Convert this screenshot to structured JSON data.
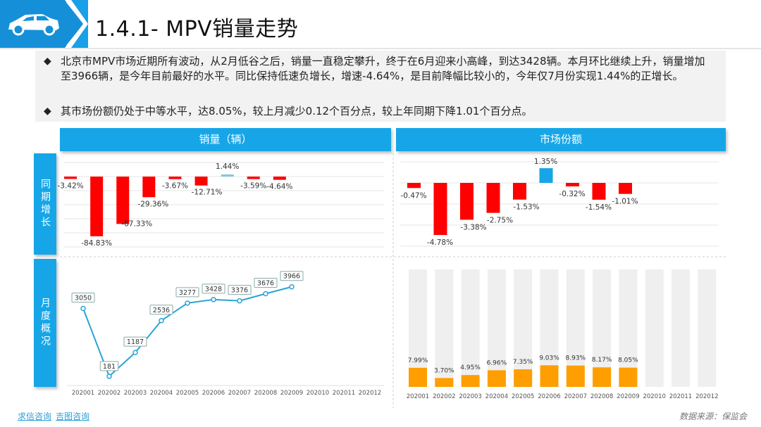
{
  "header": {
    "title": "1.4.1- MPV销量走势",
    "logo_icon": "car-icon"
  },
  "summary": {
    "bullets": [
      "北京市MPV市场近期所有波动，从2月低谷之后，销量一直稳定攀升，终于在6月迎来小高峰，到达3428辆。本月环比继续上升，销量增加至3966辆，是今年目前最好的水平。同比保持低速负增长，增速-4.64%，是目前降幅比较小的，今年仅7月份实现1.44%的正增长。",
      "其市场份额仍处于中等水平，达8.05%，较上月减少0.12个百分点，较上年同期下降1.01个百分点。"
    ]
  },
  "panels": {
    "sales_title": "销量（辆）",
    "share_title": "市场份额"
  },
  "row_labels": {
    "yoy": "同期增长",
    "monthly": "月度概况"
  },
  "colors": {
    "accent": "#16a6e8",
    "negative": "#ff0000",
    "positive": "#1aaee5",
    "line": "#2aa4d5",
    "orange": "#ff9e00",
    "grey": "#efefef"
  },
  "chart_data": [
    {
      "type": "bar",
      "title": "销量同期增长",
      "categories": [
        "202001",
        "202002",
        "202003",
        "202004",
        "202005",
        "202006",
        "202007",
        "202008",
        "202009",
        "202010",
        "202011",
        "202012"
      ],
      "values": [
        -3.42,
        -84.83,
        -67.33,
        -29.36,
        -3.67,
        -12.71,
        1.44,
        -3.59,
        -4.64,
        null,
        null,
        null
      ],
      "labels": [
        "-3.42%",
        "-84.83%",
        "-67.33%",
        "-29.36%",
        "-3.67%",
        "-12.71%",
        "1.44%",
        "-3.59%",
        "-4.64%"
      ],
      "ylim": [
        -100,
        20
      ]
    },
    {
      "type": "bar",
      "title": "市场份额同期增长",
      "categories": [
        "202001",
        "202002",
        "202003",
        "202004",
        "202005",
        "202006",
        "202007",
        "202008",
        "202009",
        "202010",
        "202011",
        "202012"
      ],
      "values": [
        -0.47,
        -4.78,
        -3.38,
        -2.75,
        -1.53,
        1.35,
        -0.32,
        -1.54,
        -1.01,
        null,
        null,
        null
      ],
      "labels": [
        "-0.47%",
        "-4.78%",
        "-3.38%",
        "-2.75%",
        "-1.53%",
        "1.35%",
        "-0.32%",
        "-1.54%",
        "-1.01%"
      ],
      "ylim": [
        -5,
        2
      ]
    },
    {
      "type": "line",
      "title": "月度销量",
      "categories": [
        "202001",
        "202002",
        "202003",
        "202004",
        "202005",
        "202006",
        "202007",
        "202008",
        "202009",
        "202010",
        "202011",
        "202012"
      ],
      "values": [
        3050,
        181,
        1187,
        2536,
        3277,
        3428,
        3376,
        3676,
        3966,
        null,
        null,
        null
      ],
      "labels": [
        "3050",
        "181",
        "1187",
        "2536",
        "3277",
        "3428",
        "3376",
        "3676",
        "3966"
      ],
      "ylim": [
        0,
        4500
      ]
    },
    {
      "type": "bar",
      "title": "月度市场份额",
      "categories": [
        "202001",
        "202002",
        "202003",
        "202004",
        "202005",
        "202006",
        "202007",
        "202008",
        "202009",
        "202010",
        "202011",
        "202012"
      ],
      "values": [
        7.99,
        3.7,
        4.95,
        6.96,
        7.35,
        9.03,
        8.93,
        8.17,
        8.05,
        null,
        null,
        null
      ],
      "labels": [
        "7.99%",
        "3.70%",
        "4.95%",
        "6.96%",
        "7.35%",
        "9.03%",
        "8.93%",
        "8.17%",
        "8.05%"
      ],
      "ylim": [
        0,
        50
      ]
    }
  ],
  "footer": {
    "links": [
      "求信咨询",
      "吉图咨询"
    ],
    "source": "数据来源：保监会"
  }
}
